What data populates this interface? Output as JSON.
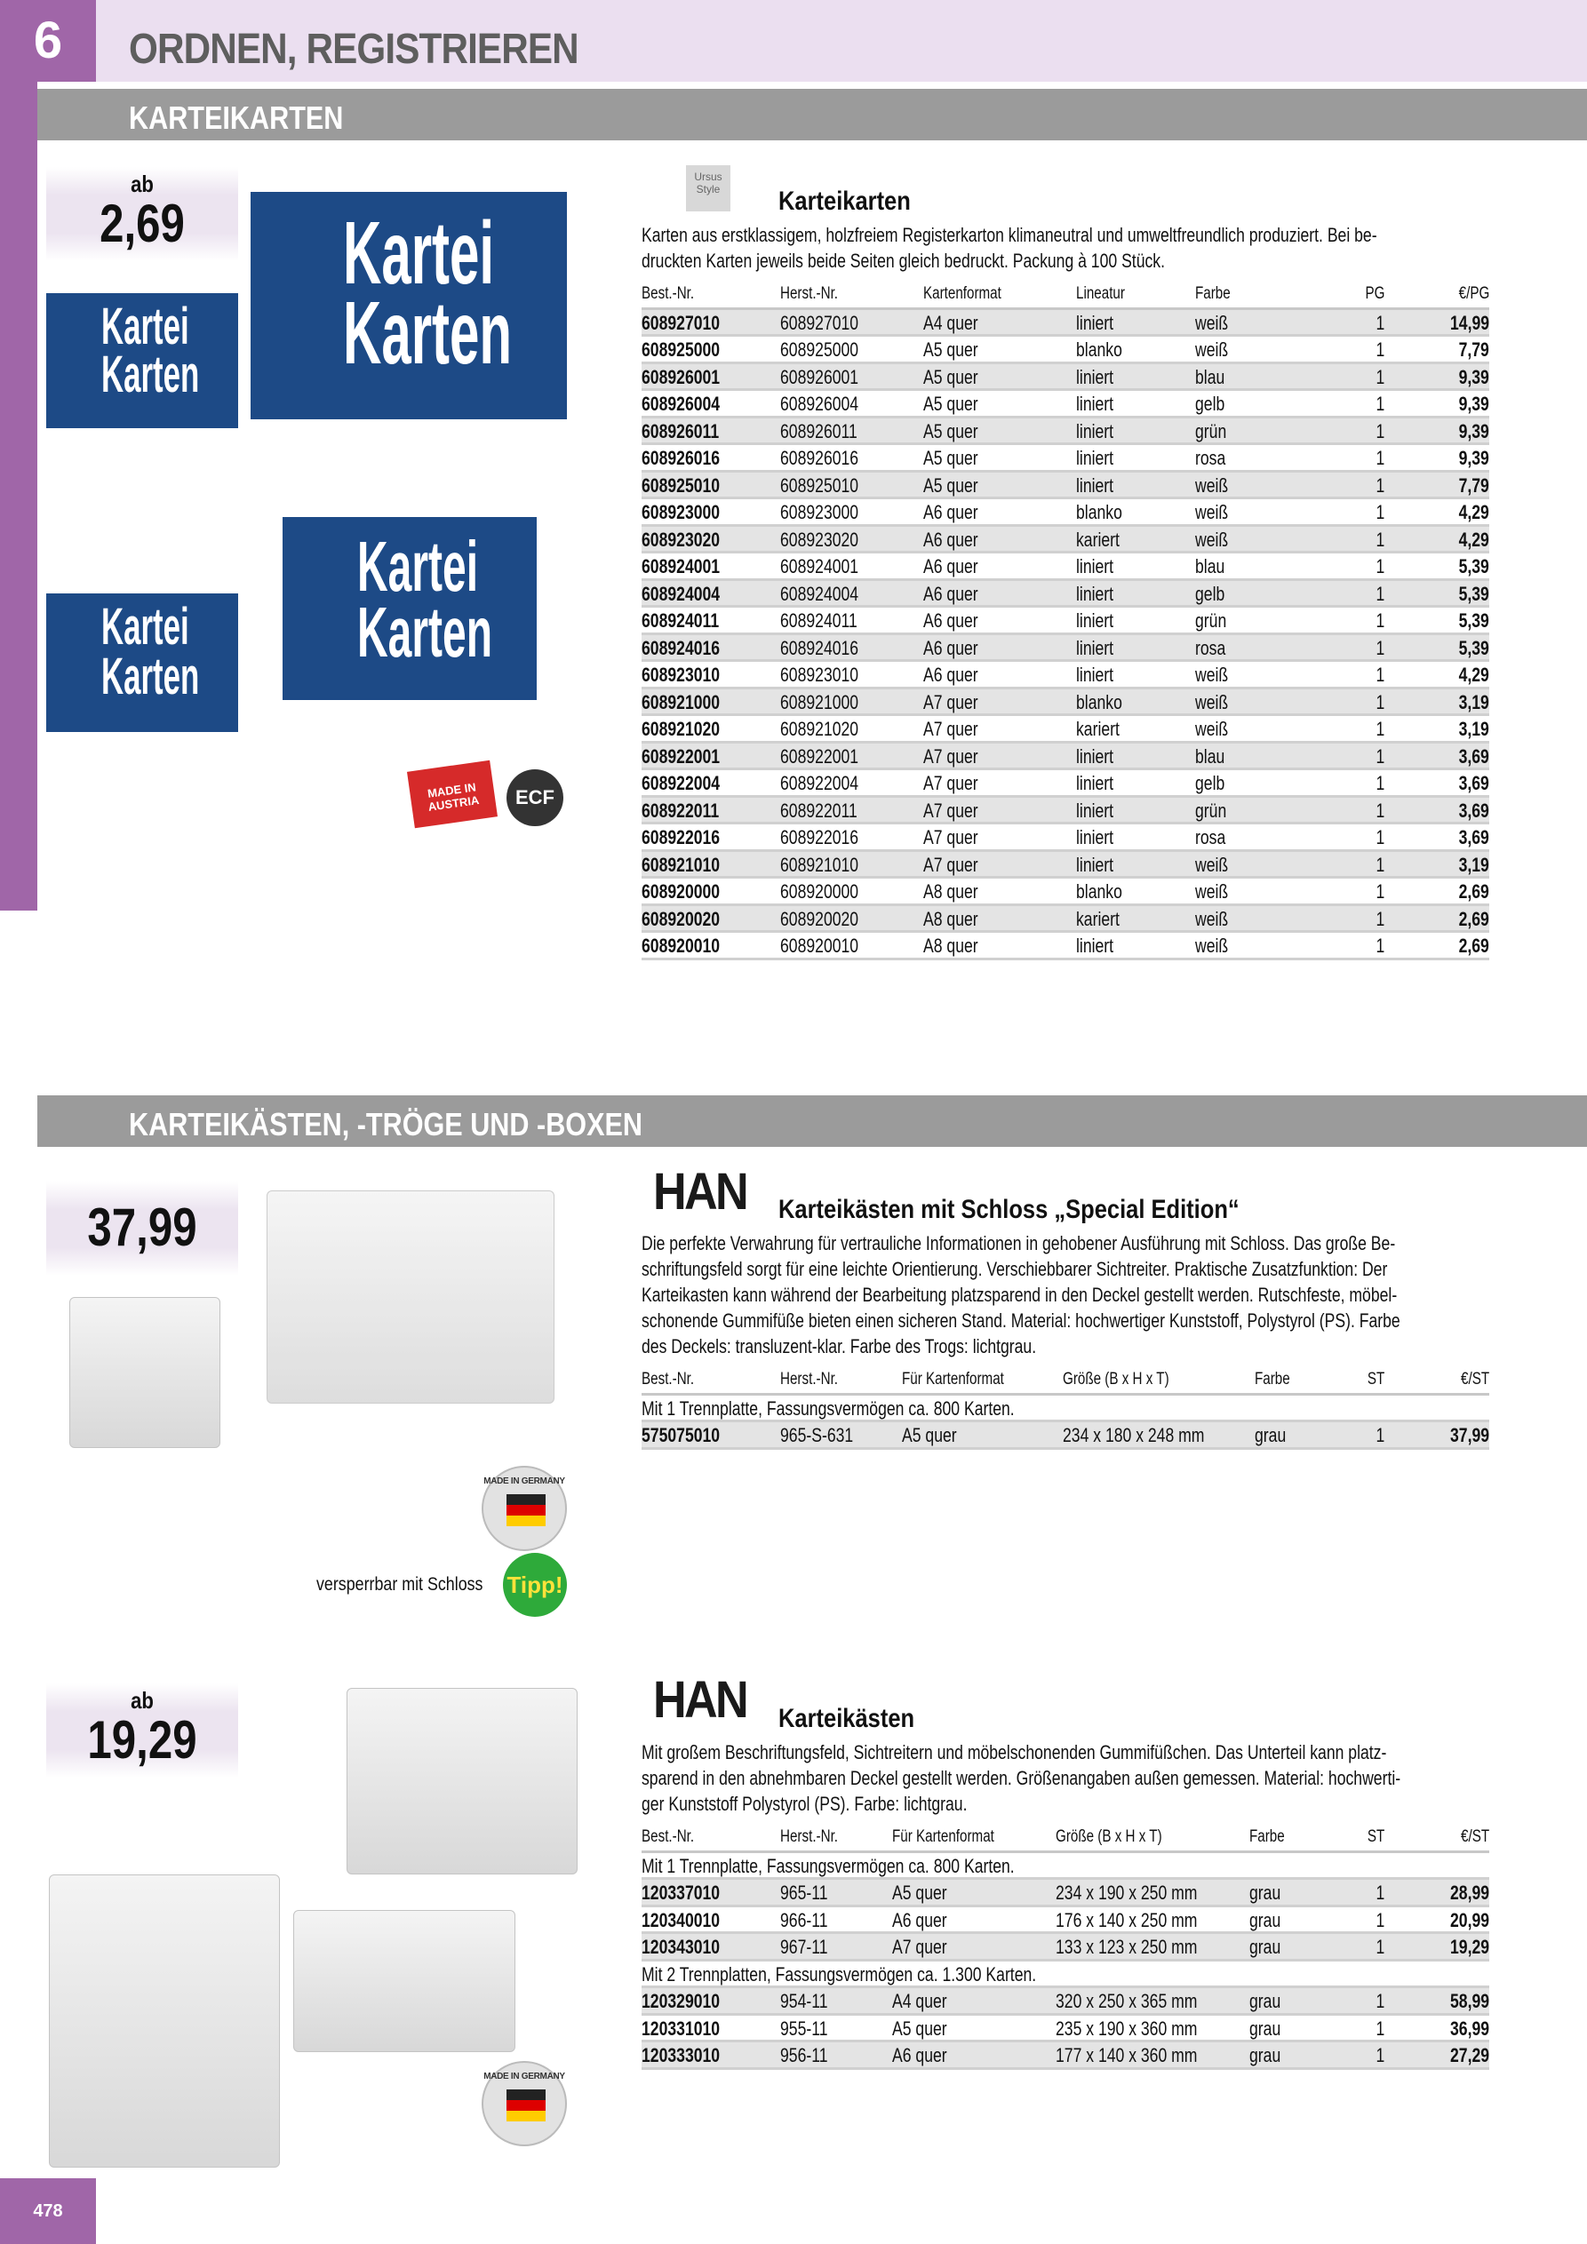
{
  "header": {
    "chapter_number": "6",
    "chapter_title": "ORDNEN, REGISTRIEREN",
    "accent": "#a066a8",
    "band": "#ebdff0"
  },
  "sections": [
    {
      "title": "KARTEIKARTEN"
    },
    {
      "title": "KARTEIKÄSTEN, -TRÖGE UND -BOXEN"
    }
  ],
  "product1": {
    "price_prefix": "ab",
    "price": "2,69",
    "brand": "Ursus Style",
    "image_text": [
      "Kartei",
      "Karten"
    ],
    "badges": [
      "MADE IN AUSTRIA",
      "ECF"
    ],
    "title": "Karteikarten",
    "description": [
      "Karten aus erstklassigem, holzfreiem Registerkarton klimaneutral und umweltfreundlich produziert. Bei be-",
      "druckten Karten jeweils beide Seiten gleich bedruckt. Packung à 100 Stück."
    ],
    "columns": [
      "Best.-Nr.",
      "Herst.-Nr.",
      "Kartenformat",
      "Lineatur",
      "Farbe",
      "PG",
      "€/PG"
    ],
    "rows": [
      [
        "608927010",
        "608927010",
        "A4 quer",
        "liniert",
        "weiß",
        "1",
        "14,99"
      ],
      [
        "608925000",
        "608925000",
        "A5 quer",
        "blanko",
        "weiß",
        "1",
        "7,79"
      ],
      [
        "608926001",
        "608926001",
        "A5 quer",
        "liniert",
        "blau",
        "1",
        "9,39"
      ],
      [
        "608926004",
        "608926004",
        "A5 quer",
        "liniert",
        "gelb",
        "1",
        "9,39"
      ],
      [
        "608926011",
        "608926011",
        "A5 quer",
        "liniert",
        "grün",
        "1",
        "9,39"
      ],
      [
        "608926016",
        "608926016",
        "A5 quer",
        "liniert",
        "rosa",
        "1",
        "9,39"
      ],
      [
        "608925010",
        "608925010",
        "A5 quer",
        "liniert",
        "weiß",
        "1",
        "7,79"
      ],
      [
        "608923000",
        "608923000",
        "A6 quer",
        "blanko",
        "weiß",
        "1",
        "4,29"
      ],
      [
        "608923020",
        "608923020",
        "A6 quer",
        "kariert",
        "weiß",
        "1",
        "4,29"
      ],
      [
        "608924001",
        "608924001",
        "A6 quer",
        "liniert",
        "blau",
        "1",
        "5,39"
      ],
      [
        "608924004",
        "608924004",
        "A6 quer",
        "liniert",
        "gelb",
        "1",
        "5,39"
      ],
      [
        "608924011",
        "608924011",
        "A6 quer",
        "liniert",
        "grün",
        "1",
        "5,39"
      ],
      [
        "608924016",
        "608924016",
        "A6 quer",
        "liniert",
        "rosa",
        "1",
        "5,39"
      ],
      [
        "608923010",
        "608923010",
        "A6 quer",
        "liniert",
        "weiß",
        "1",
        "4,29"
      ],
      [
        "608921000",
        "608921000",
        "A7 quer",
        "blanko",
        "weiß",
        "1",
        "3,19"
      ],
      [
        "608921020",
        "608921020",
        "A7 quer",
        "kariert",
        "weiß",
        "1",
        "3,19"
      ],
      [
        "608922001",
        "608922001",
        "A7 quer",
        "liniert",
        "blau",
        "1",
        "3,69"
      ],
      [
        "608922004",
        "608922004",
        "A7 quer",
        "liniert",
        "gelb",
        "1",
        "3,69"
      ],
      [
        "608922011",
        "608922011",
        "A7 quer",
        "liniert",
        "grün",
        "1",
        "3,69"
      ],
      [
        "608922016",
        "608922016",
        "A7 quer",
        "liniert",
        "rosa",
        "1",
        "3,69"
      ],
      [
        "608921010",
        "608921010",
        "A7 quer",
        "liniert",
        "weiß",
        "1",
        "3,19"
      ],
      [
        "608920000",
        "608920000",
        "A8 quer",
        "blanko",
        "weiß",
        "1",
        "2,69"
      ],
      [
        "608920020",
        "608920020",
        "A8 quer",
        "kariert",
        "weiß",
        "1",
        "2,69"
      ],
      [
        "608920010",
        "608920010",
        "A8 quer",
        "liniert",
        "weiß",
        "1",
        "2,69"
      ]
    ]
  },
  "product2": {
    "price": "37,99",
    "brand": "HAN",
    "title": "Karteikästen mit Schloss „Special Edition“",
    "description": [
      "Die perfekte Verwahrung für vertrauliche Informationen in gehobener Ausführung mit Schloss. Das große Be-",
      "schriftungsfeld sorgt für eine leichte Orientierung. Verschiebbarer Sichtreiter. Praktische Zusatzfunktion: Der",
      "Karteikasten kann während der Bearbeitung platzsparend in den Deckel gestellt werden. Rutschfeste, möbel-",
      "schonende Gummifüße bieten einen sicheren Stand. Material: hochwertiger Kunststoff, Polystyrol (PS). Farbe",
      "des Deckels: transluzent-klar. Farbe des Trogs: lichtgrau."
    ],
    "columns": [
      "Best.-Nr.",
      "Herst.-Nr.",
      "Für Kartenformat",
      "Größe (B x H x T)",
      "Farbe",
      "ST",
      "€/ST"
    ],
    "groups": [
      {
        "label": "Mit 1 Trennplatte, Fassungsvermögen ca. 800 Karten.",
        "rows": [
          [
            "575075010",
            "965-S-631",
            "A5 quer",
            "234 x 180 x 248 mm",
            "grau",
            "1",
            "37,99"
          ]
        ]
      }
    ],
    "badge": "MADE IN GERMANY",
    "tip_caption": "versperrbar mit Schloss",
    "tip_label": "Tipp!"
  },
  "product3": {
    "price_prefix": "ab",
    "price": "19,29",
    "brand": "HAN",
    "title": "Karteikästen",
    "description": [
      "Mit großem Beschriftungsfeld, Sichtreitern und möbelschonenden Gummifüßchen. Das Unterteil kann platz-",
      "sparend in den abnehmbaren Deckel gestellt werden. Größenangaben außen gemessen. Material: hochwerti-",
      "ger Kunststoff Polystyrol (PS). Farbe: lichtgrau."
    ],
    "columns": [
      "Best.-Nr.",
      "Herst.-Nr.",
      "Für Kartenformat",
      "Größe (B x H x T)",
      "Farbe",
      "ST",
      "€/ST"
    ],
    "groups": [
      {
        "label": "Mit 1 Trennplatte, Fassungsvermögen ca. 800 Karten.",
        "rows": [
          [
            "120337010",
            "965-11",
            "A5 quer",
            "234 x 190 x 250 mm",
            "grau",
            "1",
            "28,99"
          ],
          [
            "120340010",
            "966-11",
            "A6 quer",
            "176 x 140 x 250 mm",
            "grau",
            "1",
            "20,99"
          ],
          [
            "120343010",
            "967-11",
            "A7 quer",
            "133 x 123 x 250 mm",
            "grau",
            "1",
            "19,29"
          ]
        ]
      },
      {
        "label": "Mit 2 Trennplatten, Fassungsvermögen ca. 1.300 Karten.",
        "rows": [
          [
            "120329010",
            "954-11",
            "A4 quer",
            "320 x 250 x 365 mm",
            "grau",
            "1",
            "58,99"
          ],
          [
            "120331010",
            "955-11",
            "A5 quer",
            "235 x 190 x 360 mm",
            "grau",
            "1",
            "36,99"
          ],
          [
            "120333010",
            "956-11",
            "A6 quer",
            "177 x 140 x 360 mm",
            "grau",
            "1",
            "27,29"
          ]
        ]
      }
    ],
    "badge": "MADE IN GERMANY"
  },
  "footer": {
    "page_number": "478"
  }
}
